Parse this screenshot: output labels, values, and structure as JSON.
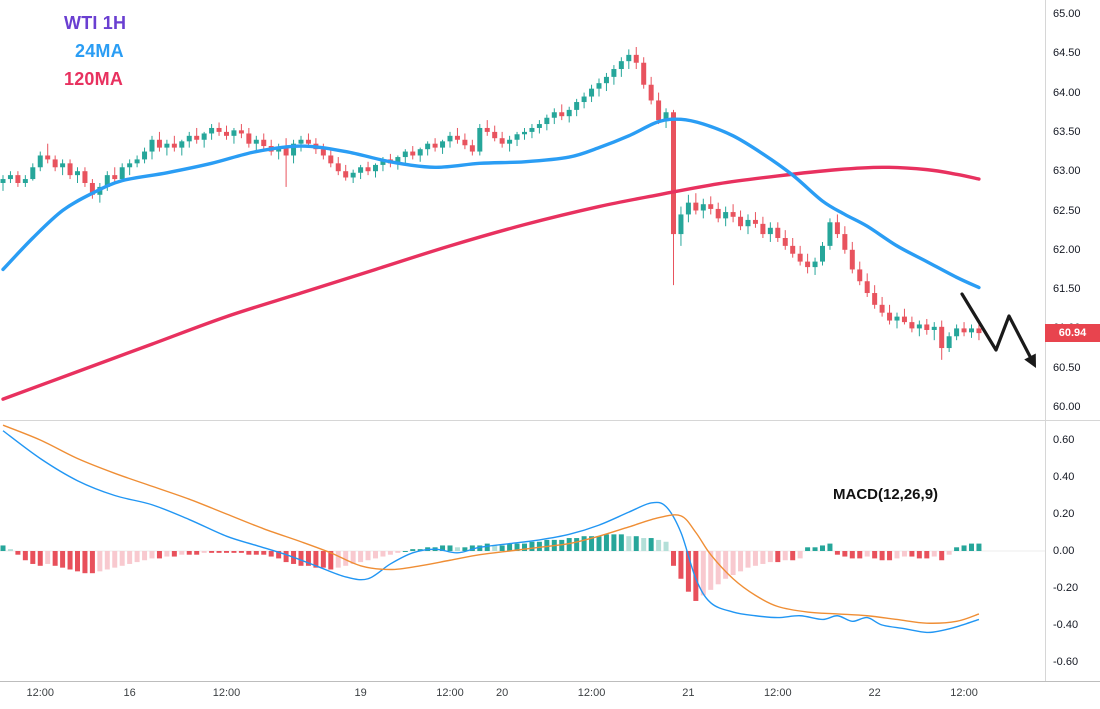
{
  "chart_data": {
    "type": "candlestick+macd",
    "title": "WTI 1H",
    "legend": [
      {
        "label": "WTI 1H",
        "color": "#6a3fd1"
      },
      {
        "label": "24MA",
        "color": "#2a9df4"
      },
      {
        "label": "120MA",
        "color": "#e8315f"
      }
    ],
    "macd_label": "MACD(12,26,9)",
    "last_price": "60.94",
    "price_axis_ticks": [
      "65.00",
      "64.50",
      "64.00",
      "63.50",
      "63.00",
      "62.50",
      "62.00",
      "61.50",
      "61.00",
      "60.50",
      "60.00"
    ],
    "macd_axis_ticks": [
      "0.60",
      "0.40",
      "0.20",
      "0.00",
      "-0.20",
      "-0.40",
      "-0.60"
    ],
    "time_axis": [
      {
        "t": "12:00",
        "i": 5
      },
      {
        "t": "16",
        "i": 17
      },
      {
        "t": "12:00",
        "i": 30
      },
      {
        "t": "19",
        "i": 48
      },
      {
        "t": "12:00",
        "i": 60
      },
      {
        "t": "20",
        "i": 67
      },
      {
        "t": "12:00",
        "i": 79
      },
      {
        "t": "21",
        "i": 92
      },
      {
        "t": "12:00",
        "i": 104
      },
      {
        "t": "22",
        "i": 117
      },
      {
        "t": "12:00",
        "i": 129
      }
    ],
    "price_range": {
      "min": 60.0,
      "max": 65.0
    },
    "macd_range": {
      "min": -0.6,
      "max": 0.6
    },
    "candles": [
      [
        62.85,
        62.95,
        62.75,
        62.9
      ],
      [
        62.9,
        63.0,
        62.85,
        62.95
      ],
      [
        62.95,
        63.0,
        62.8,
        62.85
      ],
      [
        62.85,
        62.95,
        62.8,
        62.9
      ],
      [
        62.9,
        63.1,
        62.88,
        63.05
      ],
      [
        63.05,
        63.25,
        63.0,
        63.2
      ],
      [
        63.2,
        63.35,
        63.1,
        63.15
      ],
      [
        63.15,
        63.2,
        63.0,
        63.05
      ],
      [
        63.05,
        63.15,
        62.95,
        63.1
      ],
      [
        63.1,
        63.15,
        62.9,
        62.95
      ],
      [
        62.95,
        63.05,
        62.85,
        63.0
      ],
      [
        63.0,
        63.05,
        62.8,
        62.85
      ],
      [
        62.85,
        62.9,
        62.65,
        62.7
      ],
      [
        62.7,
        62.85,
        62.6,
        62.8
      ],
      [
        62.8,
        63.0,
        62.75,
        62.95
      ],
      [
        62.95,
        63.05,
        62.85,
        62.9
      ],
      [
        62.9,
        63.1,
        62.88,
        63.05
      ],
      [
        63.05,
        63.15,
        62.95,
        63.1
      ],
      [
        63.1,
        63.2,
        63.05,
        63.15
      ],
      [
        63.15,
        63.3,
        63.1,
        63.25
      ],
      [
        63.25,
        63.45,
        63.15,
        63.4
      ],
      [
        63.4,
        63.5,
        63.25,
        63.3
      ],
      [
        63.3,
        63.4,
        63.2,
        63.35
      ],
      [
        63.35,
        63.45,
        63.25,
        63.3
      ],
      [
        63.3,
        63.4,
        63.2,
        63.38
      ],
      [
        63.38,
        63.5,
        63.3,
        63.45
      ],
      [
        63.45,
        63.55,
        63.35,
        63.4
      ],
      [
        63.4,
        63.5,
        63.3,
        63.48
      ],
      [
        63.48,
        63.6,
        63.4,
        63.55
      ],
      [
        63.55,
        63.62,
        63.45,
        63.5
      ],
      [
        63.5,
        63.58,
        63.4,
        63.45
      ],
      [
        63.45,
        63.55,
        63.35,
        63.52
      ],
      [
        63.52,
        63.6,
        63.42,
        63.48
      ],
      [
        63.48,
        63.55,
        63.3,
        63.35
      ],
      [
        63.35,
        63.45,
        63.25,
        63.4
      ],
      [
        63.4,
        63.48,
        63.28,
        63.32
      ],
      [
        63.32,
        63.4,
        63.2,
        63.25
      ],
      [
        63.25,
        63.35,
        63.15,
        63.3
      ],
      [
        63.3,
        63.42,
        62.8,
        63.2
      ],
      [
        63.2,
        63.4,
        63.1,
        63.35
      ],
      [
        63.35,
        63.45,
        63.25,
        63.4
      ],
      [
        63.4,
        63.48,
        63.3,
        63.35
      ],
      [
        63.35,
        63.42,
        63.22,
        63.28
      ],
      [
        63.28,
        63.35,
        63.15,
        63.2
      ],
      [
        63.2,
        63.28,
        63.05,
        63.1
      ],
      [
        63.1,
        63.18,
        62.95,
        63.0
      ],
      [
        63.0,
        63.08,
        62.88,
        62.92
      ],
      [
        62.92,
        63.02,
        62.85,
        62.98
      ],
      [
        62.98,
        63.08,
        62.9,
        63.05
      ],
      [
        63.05,
        63.12,
        62.95,
        63.0
      ],
      [
        63.0,
        63.1,
        62.92,
        63.08
      ],
      [
        63.08,
        63.18,
        63.0,
        63.15
      ],
      [
        63.15,
        63.22,
        63.05,
        63.1
      ],
      [
        63.1,
        63.2,
        63.02,
        63.18
      ],
      [
        63.18,
        63.28,
        63.1,
        63.25
      ],
      [
        63.25,
        63.32,
        63.15,
        63.2
      ],
      [
        63.2,
        63.3,
        63.12,
        63.28
      ],
      [
        63.28,
        63.38,
        63.2,
        63.35
      ],
      [
        63.35,
        63.42,
        63.25,
        63.3
      ],
      [
        63.3,
        63.4,
        63.22,
        63.38
      ],
      [
        63.38,
        63.5,
        63.3,
        63.45
      ],
      [
        63.45,
        63.55,
        63.35,
        63.4
      ],
      [
        63.4,
        63.48,
        63.28,
        63.33
      ],
      [
        63.33,
        63.4,
        63.2,
        63.25
      ],
      [
        63.25,
        63.6,
        63.2,
        63.55
      ],
      [
        63.55,
        63.65,
        63.45,
        63.5
      ],
      [
        63.5,
        63.58,
        63.38,
        63.42
      ],
      [
        63.42,
        63.5,
        63.3,
        63.35
      ],
      [
        63.35,
        63.45,
        63.25,
        63.4
      ],
      [
        63.4,
        63.5,
        63.32,
        63.47
      ],
      [
        63.47,
        63.55,
        63.4,
        63.5
      ],
      [
        63.5,
        63.6,
        63.42,
        63.55
      ],
      [
        63.55,
        63.65,
        63.48,
        63.6
      ],
      [
        63.6,
        63.72,
        63.52,
        63.68
      ],
      [
        63.68,
        63.8,
        63.6,
        63.75
      ],
      [
        63.75,
        63.85,
        63.65,
        63.7
      ],
      [
        63.7,
        63.82,
        63.62,
        63.78
      ],
      [
        63.78,
        63.92,
        63.7,
        63.88
      ],
      [
        63.88,
        64.0,
        63.8,
        63.95
      ],
      [
        63.95,
        64.1,
        63.88,
        64.05
      ],
      [
        64.05,
        64.18,
        63.95,
        64.12
      ],
      [
        64.12,
        64.25,
        64.02,
        64.2
      ],
      [
        64.2,
        64.35,
        64.1,
        64.3
      ],
      [
        64.3,
        64.45,
        64.2,
        64.4
      ],
      [
        64.4,
        64.55,
        64.3,
        64.48
      ],
      [
        64.48,
        64.58,
        64.3,
        64.38
      ],
      [
        64.38,
        64.45,
        64.05,
        64.1
      ],
      [
        64.1,
        64.2,
        63.85,
        63.9
      ],
      [
        63.9,
        64.0,
        63.6,
        63.65
      ],
      [
        63.65,
        63.8,
        63.55,
        63.75
      ],
      [
        63.75,
        63.78,
        61.55,
        62.2
      ],
      [
        62.2,
        62.55,
        62.05,
        62.45
      ],
      [
        62.45,
        62.7,
        62.35,
        62.6
      ],
      [
        62.6,
        62.72,
        62.45,
        62.5
      ],
      [
        62.5,
        62.65,
        62.4,
        62.58
      ],
      [
        62.58,
        62.68,
        62.45,
        62.52
      ],
      [
        62.52,
        62.6,
        62.35,
        62.4
      ],
      [
        62.4,
        62.55,
        62.3,
        62.48
      ],
      [
        62.48,
        62.58,
        62.35,
        62.42
      ],
      [
        62.42,
        62.5,
        62.25,
        62.3
      ],
      [
        62.3,
        62.45,
        62.2,
        62.38
      ],
      [
        62.38,
        62.48,
        62.28,
        62.33
      ],
      [
        62.33,
        62.42,
        62.15,
        62.2
      ],
      [
        62.2,
        62.35,
        62.1,
        62.28
      ],
      [
        62.28,
        62.35,
        62.1,
        62.15
      ],
      [
        62.15,
        62.25,
        62.0,
        62.05
      ],
      [
        62.05,
        62.15,
        61.9,
        61.95
      ],
      [
        61.95,
        62.05,
        61.8,
        61.85
      ],
      [
        61.85,
        61.95,
        61.7,
        61.78
      ],
      [
        61.78,
        61.9,
        61.68,
        61.85
      ],
      [
        61.85,
        62.1,
        61.8,
        62.05
      ],
      [
        62.05,
        62.4,
        62.0,
        62.35
      ],
      [
        62.35,
        62.45,
        62.15,
        62.2
      ],
      [
        62.2,
        62.3,
        61.95,
        62.0
      ],
      [
        62.0,
        62.1,
        61.7,
        61.75
      ],
      [
        61.75,
        61.85,
        61.55,
        61.6
      ],
      [
        61.6,
        61.7,
        61.4,
        61.45
      ],
      [
        61.45,
        61.55,
        61.25,
        61.3
      ],
      [
        61.3,
        61.4,
        61.15,
        61.2
      ],
      [
        61.2,
        61.3,
        61.05,
        61.1
      ],
      [
        61.1,
        61.2,
        61.0,
        61.15
      ],
      [
        61.15,
        61.25,
        61.05,
        61.08
      ],
      [
        61.08,
        61.15,
        60.95,
        61.0
      ],
      [
        61.0,
        61.1,
        60.9,
        61.05
      ],
      [
        61.05,
        61.12,
        60.92,
        60.98
      ],
      [
        60.98,
        61.08,
        60.85,
        61.02
      ],
      [
        61.02,
        61.1,
        60.6,
        60.75
      ],
      [
        60.75,
        60.95,
        60.7,
        60.9
      ],
      [
        60.9,
        61.05,
        60.85,
        61.0
      ],
      [
        61.0,
        61.08,
        60.9,
        60.95
      ],
      [
        60.95,
        61.05,
        60.88,
        61.0
      ],
      [
        61.0,
        61.05,
        60.85,
        60.94
      ]
    ],
    "ma24_points": [
      [
        0,
        61.75
      ],
      [
        4,
        62.15
      ],
      [
        8,
        62.5
      ],
      [
        12,
        62.72
      ],
      [
        16,
        62.88
      ],
      [
        22,
        62.98
      ],
      [
        28,
        63.1
      ],
      [
        34,
        63.25
      ],
      [
        40,
        63.32
      ],
      [
        46,
        63.25
      ],
      [
        52,
        63.12
      ],
      [
        58,
        63.05
      ],
      [
        64,
        63.1
      ],
      [
        70,
        63.12
      ],
      [
        76,
        63.18
      ],
      [
        80,
        63.3
      ],
      [
        84,
        63.45
      ],
      [
        88,
        63.63
      ],
      [
        91,
        63.66
      ],
      [
        94,
        63.6
      ],
      [
        98,
        63.45
      ],
      [
        102,
        63.22
      ],
      [
        106,
        62.95
      ],
      [
        110,
        62.62
      ],
      [
        113,
        62.45
      ],
      [
        116,
        62.3
      ],
      [
        120,
        62.05
      ],
      [
        124,
        61.85
      ],
      [
        128,
        61.65
      ],
      [
        131,
        61.52
      ]
    ],
    "ma120_points": [
      [
        0,
        60.1
      ],
      [
        10,
        60.45
      ],
      [
        20,
        60.8
      ],
      [
        30,
        61.15
      ],
      [
        40,
        61.45
      ],
      [
        50,
        61.75
      ],
      [
        60,
        62.05
      ],
      [
        70,
        62.32
      ],
      [
        80,
        62.55
      ],
      [
        88,
        62.7
      ],
      [
        96,
        62.84
      ],
      [
        104,
        62.94
      ],
      [
        112,
        63.02
      ],
      [
        118,
        63.05
      ],
      [
        124,
        63.02
      ],
      [
        128,
        62.96
      ],
      [
        131,
        62.9
      ]
    ],
    "macd_line": [
      [
        0,
        0.65
      ],
      [
        5,
        0.5
      ],
      [
        10,
        0.38
      ],
      [
        15,
        0.3
      ],
      [
        20,
        0.25
      ],
      [
        25,
        0.17
      ],
      [
        30,
        0.08
      ],
      [
        34,
        0.03
      ],
      [
        38,
        -0.02
      ],
      [
        42,
        -0.08
      ],
      [
        46,
        -0.14
      ],
      [
        49,
        -0.15
      ],
      [
        52,
        -0.07
      ],
      [
        55,
        -0.01
      ],
      [
        58,
        0.01
      ],
      [
        61,
        -0.01
      ],
      [
        64,
        0.02
      ],
      [
        68,
        0.04
      ],
      [
        72,
        0.06
      ],
      [
        76,
        0.09
      ],
      [
        80,
        0.14
      ],
      [
        84,
        0.21
      ],
      [
        87,
        0.26
      ],
      [
        89,
        0.24
      ],
      [
        91,
        0.1
      ],
      [
        93,
        -0.15
      ],
      [
        95,
        -0.28
      ],
      [
        98,
        -0.33
      ],
      [
        101,
        -0.35
      ],
      [
        104,
        -0.36
      ],
      [
        107,
        -0.35
      ],
      [
        110,
        -0.37
      ],
      [
        112,
        -0.35
      ],
      [
        114,
        -0.38
      ],
      [
        116,
        -0.36
      ],
      [
        118,
        -0.4
      ],
      [
        121,
        -0.42
      ],
      [
        124,
        -0.44
      ],
      [
        126,
        -0.43
      ],
      [
        128,
        -0.41
      ],
      [
        131,
        -0.37
      ]
    ],
    "signal_line": [
      [
        0,
        0.68
      ],
      [
        5,
        0.6
      ],
      [
        10,
        0.5
      ],
      [
        15,
        0.42
      ],
      [
        20,
        0.35
      ],
      [
        25,
        0.28
      ],
      [
        30,
        0.2
      ],
      [
        35,
        0.12
      ],
      [
        40,
        0.05
      ],
      [
        44,
        -0.01
      ],
      [
        48,
        -0.08
      ],
      [
        52,
        -0.1
      ],
      [
        56,
        -0.08
      ],
      [
        60,
        -0.05
      ],
      [
        64,
        -0.02
      ],
      [
        68,
        0.0
      ],
      [
        72,
        0.02
      ],
      [
        76,
        0.04
      ],
      [
        80,
        0.08
      ],
      [
        84,
        0.13
      ],
      [
        88,
        0.18
      ],
      [
        91,
        0.19
      ],
      [
        93,
        0.1
      ],
      [
        95,
        -0.02
      ],
      [
        98,
        -0.15
      ],
      [
        101,
        -0.24
      ],
      [
        104,
        -0.3
      ],
      [
        108,
        -0.33
      ],
      [
        112,
        -0.34
      ],
      [
        116,
        -0.35
      ],
      [
        120,
        -0.37
      ],
      [
        124,
        -0.39
      ],
      [
        128,
        -0.38
      ],
      [
        131,
        -0.34
      ]
    ],
    "histogram": [
      0.03,
      0.01,
      -0.02,
      -0.05,
      -0.07,
      -0.08,
      -0.07,
      -0.08,
      -0.09,
      -0.1,
      -0.11,
      -0.12,
      -0.12,
      -0.11,
      -0.1,
      -0.09,
      -0.08,
      -0.07,
      -0.06,
      -0.05,
      -0.04,
      -0.04,
      -0.03,
      -0.03,
      -0.02,
      -0.02,
      -0.02,
      -0.01,
      -0.01,
      -0.01,
      -0.01,
      -0.01,
      -0.01,
      -0.02,
      -0.02,
      -0.02,
      -0.03,
      -0.04,
      -0.06,
      -0.07,
      -0.08,
      -0.08,
      -0.09,
      -0.09,
      -0.1,
      -0.09,
      -0.08,
      -0.07,
      -0.06,
      -0.05,
      -0.04,
      -0.03,
      -0.02,
      -0.01,
      0.0,
      0.01,
      0.01,
      0.02,
      0.02,
      0.03,
      0.03,
      0.02,
      0.02,
      0.03,
      0.03,
      0.04,
      0.03,
      0.03,
      0.04,
      0.04,
      0.04,
      0.05,
      0.05,
      0.06,
      0.06,
      0.06,
      0.07,
      0.07,
      0.08,
      0.08,
      0.08,
      0.09,
      0.09,
      0.09,
      0.08,
      0.08,
      0.07,
      0.07,
      0.06,
      0.05,
      -0.08,
      -0.15,
      -0.22,
      -0.27,
      -0.24,
      -0.21,
      -0.18,
      -0.15,
      -0.13,
      -0.11,
      -0.09,
      -0.08,
      -0.07,
      -0.06,
      -0.06,
      -0.05,
      -0.05,
      -0.04,
      0.02,
      0.02,
      0.03,
      0.04,
      -0.02,
      -0.03,
      -0.04,
      -0.04,
      -0.03,
      -0.04,
      -0.05,
      -0.05,
      -0.04,
      -0.03,
      -0.03,
      -0.04,
      -0.04,
      -0.03,
      -0.05,
      -0.02,
      0.02,
      0.03,
      0.04,
      0.04
    ],
    "colors": {
      "up": "#26a69a",
      "down": "#e8535e",
      "ma24": "#2a9df4",
      "ma120": "#e8315f",
      "macd": "#2196f3",
      "signal": "#ef8e35",
      "hist_up_grow": "#26a69a",
      "hist_up_fall": "#b3dfd8",
      "hist_down_fall": "#e8505b",
      "hist_down_grow": "#f8c9cf",
      "badge": "#e8444e",
      "arrow": "#1a1a1a"
    },
    "annotation_arrow": {
      "points": [
        [
          962,
          294
        ],
        [
          996,
          350
        ],
        [
          1009,
          316
        ],
        [
          1036,
          368
        ]
      ]
    }
  }
}
